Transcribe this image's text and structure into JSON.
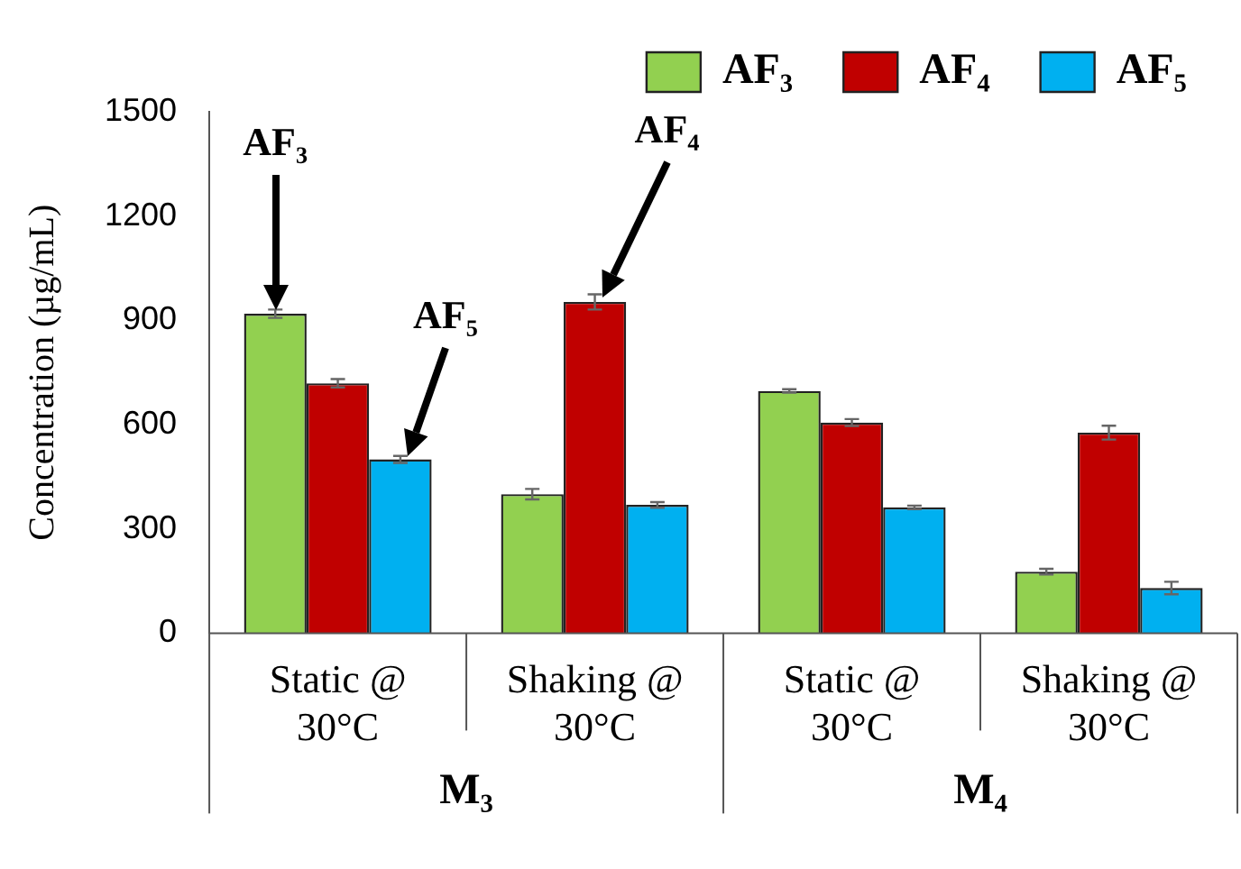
{
  "chart_data": {
    "type": "bar",
    "ylabel": "Concentration (µg/mL)",
    "categories": [
      "Static @ 30°C",
      "Shaking @ 30°C",
      "Static @ 30°C",
      "Shaking @ 30°C"
    ],
    "series": [
      {
        "name": "AF₃",
        "color": "#92d050",
        "values": [
          919,
          400,
          697,
          177
        ],
        "errors": [
          12,
          15,
          5,
          8
        ]
      },
      {
        "name": "AF₄",
        "color": "#c00000",
        "values": [
          719,
          953,
          606,
          577
        ],
        "errors": [
          12,
          22,
          10,
          20
        ]
      },
      {
        "name": "AF₅",
        "color": "#00b0f0",
        "values": [
          500,
          369,
          362,
          130
        ],
        "errors": [
          10,
          8,
          5,
          18
        ]
      }
    ],
    "ylim": [
      0,
      1500
    ],
    "yticks": [
      0,
      300,
      600,
      900,
      1200,
      1500
    ],
    "grid": false,
    "legend": "top",
    "annotations": [
      "AF₃",
      "AF₄",
      "AF₅",
      "M₃",
      "M₄"
    ]
  }
}
